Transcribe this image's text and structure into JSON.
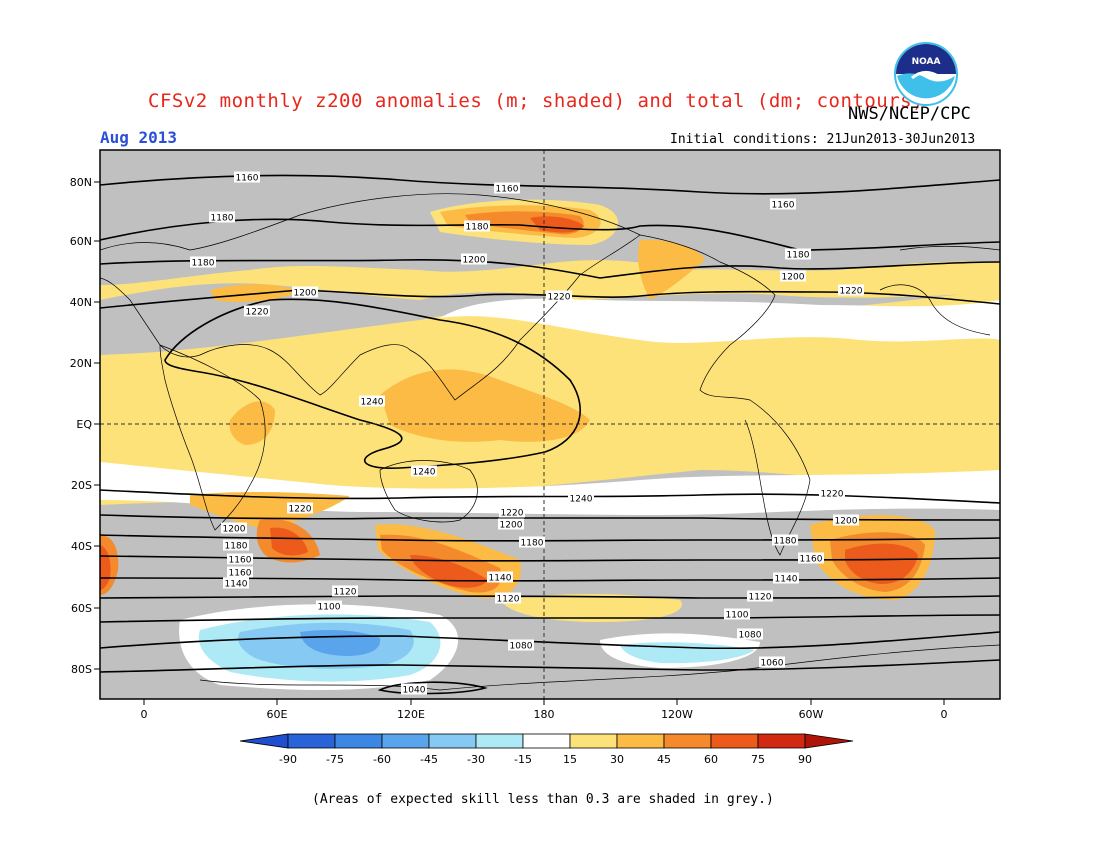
{
  "title": "CFSv2 monthly z200 anomalies (m; shaded) and total (dm; contours)",
  "agency": "NWS/NCEP/CPC",
  "period": "Aug 2013",
  "initial_conditions": "Initial conditions: 21Jun2013-30Jun2013",
  "footnote": "(Areas of expected skill less than 0.3 are shaded in grey.)",
  "logo_text": "NOAA",
  "colors": {
    "skill_grey": "#c0c0c0",
    "neutral": "#ffffff",
    "pos_15_30": "#fde27a",
    "pos_30_45": "#fbbb45",
    "pos_45_60": "#f48a2c",
    "pos_60_75": "#ec5a1c",
    "pos_75_90": "#d22a12",
    "neg_15_30": "#aeeaf5",
    "neg_30_45": "#86c9f3",
    "neg_45_60": "#5aa4ec",
    "neg_60_75": "#3c86e4",
    "neg_75_90": "#2a62d8"
  },
  "map": {
    "lat_labels": [
      "80N",
      "60N",
      "40N",
      "20N",
      "EQ",
      "20S",
      "40S",
      "60S",
      "80S"
    ],
    "lon_labels": [
      "0",
      "60E",
      "120E",
      "180",
      "120W",
      "60W",
      "0"
    ]
  },
  "colorbar": {
    "labels": [
      "-90",
      "-75",
      "-60",
      "-45",
      "-30",
      "-15",
      "15",
      "30",
      "45",
      "60",
      "75",
      "90"
    ],
    "colors": [
      "#2a62d8",
      "#3c86e4",
      "#5aa4ec",
      "#86c9f3",
      "#aeeaf5",
      "#ffffff",
      "#fde27a",
      "#fbbb45",
      "#f48a2c",
      "#ec5a1c",
      "#d22a12"
    ],
    "low_end_color": "#1f4fd0",
    "high_end_color": "#b01408"
  },
  "contour_labels": [
    "1160",
    "1160",
    "1160",
    "1180",
    "1180",
    "1180",
    "1180",
    "1200",
    "1200",
    "1200",
    "1220",
    "1220",
    "1220",
    "1240",
    "1240",
    "1240",
    "1220",
    "1220",
    "1220",
    "1200",
    "1200",
    "1200",
    "1180",
    "1180",
    "1180",
    "1160",
    "1160",
    "1160",
    "1140",
    "1140",
    "1140",
    "1120",
    "1120",
    "1120",
    "1100",
    "1100",
    "1080",
    "1080",
    "1060",
    "1060",
    "1040"
  ]
}
